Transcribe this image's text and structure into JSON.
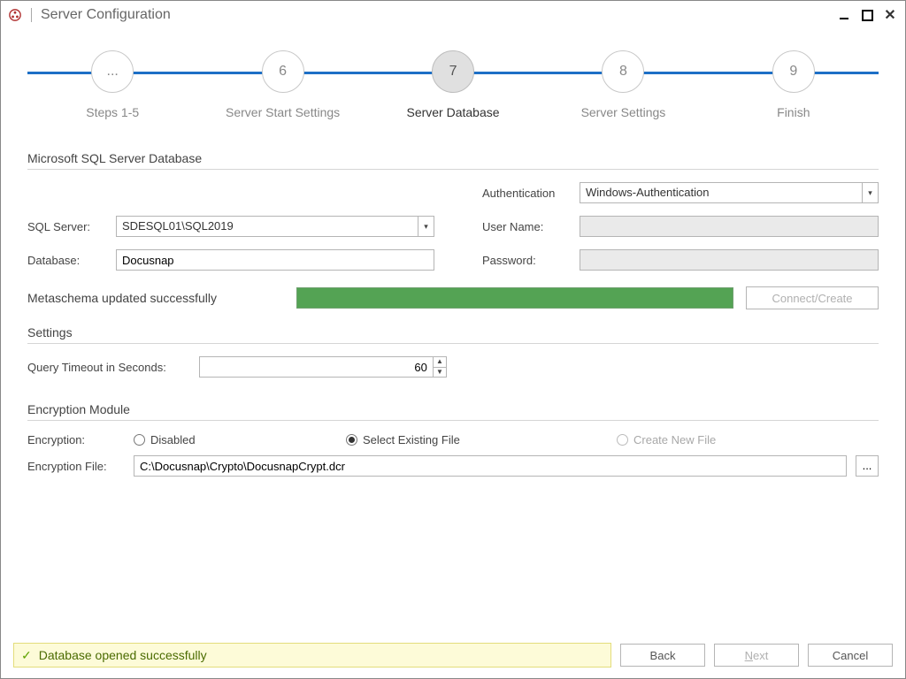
{
  "window": {
    "title": "Server Configuration"
  },
  "stepper": {
    "line_color": "#1d6fc6",
    "steps": [
      {
        "num": "...",
        "label": "Steps 1-5"
      },
      {
        "num": "6",
        "label": "Server Start Settings"
      },
      {
        "num": "7",
        "label": "Server Database",
        "active": true
      },
      {
        "num": "8",
        "label": "Server Settings"
      },
      {
        "num": "9",
        "label": "Finish"
      }
    ]
  },
  "db": {
    "section_title": "Microsoft SQL Server Database",
    "sql_server_label": "SQL Server:",
    "sql_server_value": "SDESQL01\\SQL2019",
    "database_label": "Database:",
    "database_value": "Docusnap",
    "auth_label": "Authentication",
    "auth_value": "Windows-Authentication",
    "username_label": "User Name:",
    "username_value": "",
    "password_label": "Password:",
    "password_value": "",
    "status_text": "Metaschema updated successfully",
    "progress_color": "#54a354",
    "connect_button": "Connect/Create"
  },
  "settings": {
    "section_title": "Settings",
    "timeout_label": "Query Timeout in Seconds:",
    "timeout_value": "60"
  },
  "encryption": {
    "section_title": "Encryption Module",
    "label": "Encryption:",
    "options": {
      "disabled": "Disabled",
      "select_existing": "Select Existing File",
      "create_new": "Create New File"
    },
    "selected": "select_existing",
    "file_label": "Encryption File:",
    "file_value": "C:\\Docusnap\\Crypto\\DocusnapCrypt.dcr"
  },
  "footer": {
    "banner_text": "Database opened successfully",
    "back": "Back",
    "next": "Next",
    "cancel": "Cancel"
  }
}
